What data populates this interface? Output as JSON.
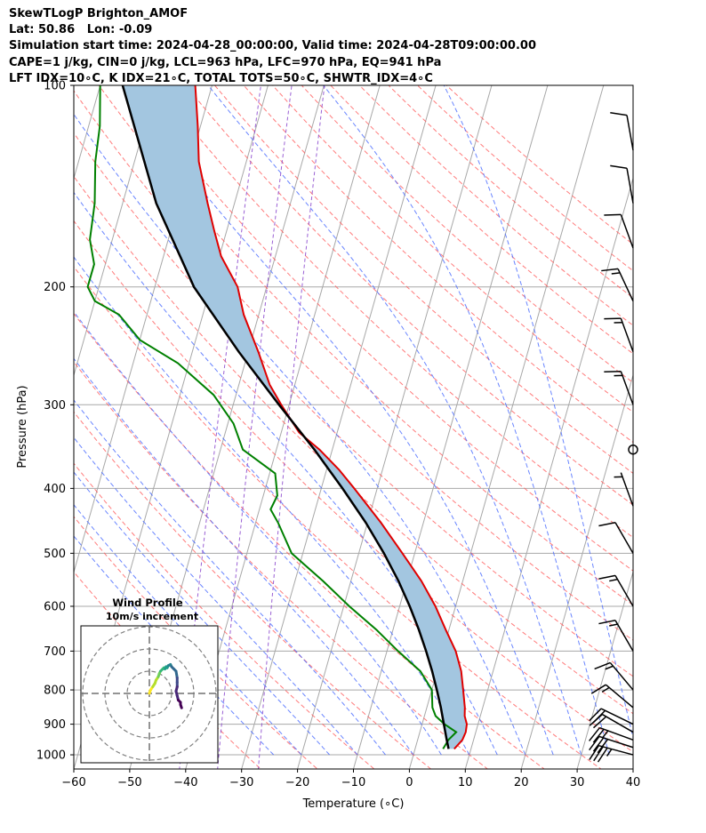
{
  "header": {
    "line1": "SkewTLogP Brighton_AMOF",
    "line2": "Lat: 50.86   Lon: -0.09",
    "line3": "Simulation start time: 2024-04-28_00:00:00, Valid time: 2024-04-28T09:00:00.00",
    "line4": "CAPE=1 j/kg, CIN=0 j/kg, LCL=963 hPa, LFC=970 hPa, EQ=941 hPa",
    "line5": "LFT IDX=10∘C, K IDX=21∘C, TOTAL TOTS=50∘C, SHWTR_IDX=4∘C"
  },
  "chart_data": [
    {
      "type": "line",
      "subtype": "skew-t log-p",
      "xlabel": "Temperature (∘C)",
      "ylabel": "Pressure (hPa)",
      "xlim": [
        -60,
        40
      ],
      "ylim": [
        1050,
        100
      ],
      "y_scale": "log",
      "x_ticks": [
        -60,
        -50,
        -40,
        -30,
        -20,
        -10,
        0,
        10,
        20,
        30,
        40
      ],
      "x_tick_labels": [
        "−60",
        "−50",
        "−40",
        "−30",
        "−20",
        "−10",
        "0",
        "10",
        "20",
        "30",
        "40"
      ],
      "y_ticks": [
        1000,
        900,
        800,
        700,
        600,
        500,
        400,
        300,
        200,
        100
      ],
      "y_tick_labels": [
        "1000",
        "900",
        "800",
        "700",
        "600",
        "500",
        "400",
        "300",
        "200",
        "100"
      ],
      "grid": true,
      "skew_deg_per_decade": 34,
      "colors": {
        "temperature": "#e00000",
        "dewpoint": "#008000",
        "parcel": "#000000",
        "cape_fill": "#a3c6e0",
        "dry_adiabat": "#ff5a5a",
        "moist_adiabat": "#4466ff",
        "mixing_ratio": "#8844cc",
        "isotherm_grid": "#a8a8a8",
        "wind_barb": "#000000"
      },
      "series": [
        {
          "pressure": [
            980,
            950,
            925,
            900,
            875,
            850,
            800,
            750,
            700,
            650,
            600,
            550,
            500,
            450,
            400,
            375,
            350,
            330,
            300,
            280,
            250,
            220,
            200,
            180,
            165,
            150,
            130,
            115,
            100
          ],
          "values": [
            7.0,
            8.0,
            8.2,
            8.0,
            7.2,
            6.8,
            5.6,
            4.3,
            2.3,
            -0.6,
            -3.6,
            -7.4,
            -12.2,
            -17.6,
            -24.1,
            -27.8,
            -32.3,
            -36.8,
            -41.4,
            -44.5,
            -48.2,
            -52.7,
            -55.2,
            -59.7,
            -62.2,
            -64.8,
            -68.5,
            -70.5,
            -73.0
          ]
        },
        {
          "pressure": [
            980,
            950,
            925,
            900,
            875,
            850,
            800,
            750,
            700,
            650,
            600,
            550,
            500,
            450,
            430,
            410,
            380,
            350,
            320,
            290,
            260,
            240,
            220,
            210,
            200,
            185,
            170,
            150,
            130,
            115,
            100
          ],
          "values": [
            5.0,
            5.5,
            6.5,
            4.0,
            2.0,
            1.0,
            0.0,
            -3.0,
            -8.0,
            -13.0,
            -19.0,
            -25.0,
            -32.0,
            -36.0,
            -38.0,
            -37.5,
            -39.0,
            -46.0,
            -49.0,
            -54.0,
            -62.0,
            -70.0,
            -75.0,
            -80.0,
            -82.0,
            -82.0,
            -84.0,
            -85.0,
            -87.0,
            -88.0,
            -90.0
          ]
        },
        {
          "pressure": [
            980,
            950,
            900,
            850,
            800,
            750,
            700,
            650,
            600,
            550,
            500,
            450,
            400,
            350,
            300,
            250,
            200,
            150,
            100
          ],
          "values": [
            6.0,
            5.2,
            3.9,
            2.5,
            0.9,
            -0.9,
            -3.0,
            -5.4,
            -8.2,
            -11.5,
            -15.5,
            -20.3,
            -26.2,
            -33.2,
            -41.8,
            -51.7,
            -63.0,
            -74.0,
            -86.0
          ]
        }
      ],
      "wind_barbs": [
        {
          "pressure": 1000,
          "speed_kt": 35,
          "dir_deg": 285
        },
        {
          "pressure": 975,
          "speed_kt": 30,
          "dir_deg": 288
        },
        {
          "pressure": 950,
          "speed_kt": 25,
          "dir_deg": 290
        },
        {
          "pressure": 925,
          "speed_kt": 20,
          "dir_deg": 300
        },
        {
          "pressure": 900,
          "speed_kt": 20,
          "dir_deg": 296
        },
        {
          "pressure": 850,
          "speed_kt": 15,
          "dir_deg": 310
        },
        {
          "pressure": 800,
          "speed_kt": 15,
          "dir_deg": 320
        },
        {
          "pressure": 700,
          "speed_kt": 15,
          "dir_deg": 330
        },
        {
          "pressure": 600,
          "speed_kt": 15,
          "dir_deg": 330
        },
        {
          "pressure": 500,
          "speed_kt": 10,
          "dir_deg": 330
        },
        {
          "pressure": 425,
          "speed_kt": 5,
          "dir_deg": 340
        },
        {
          "pressure": 350,
          "speed_kt": 0,
          "dir_deg": 0
        },
        {
          "pressure": 300,
          "speed_kt": 15,
          "dir_deg": 340
        },
        {
          "pressure": 250,
          "speed_kt": 15,
          "dir_deg": 340
        },
        {
          "pressure": 210,
          "speed_kt": 15,
          "dir_deg": 335
        },
        {
          "pressure": 175,
          "speed_kt": 10,
          "dir_deg": 340
        },
        {
          "pressure": 150,
          "speed_kt": 10,
          "dir_deg": 350
        },
        {
          "pressure": 125,
          "speed_kt": 10,
          "dir_deg": 350
        }
      ]
    },
    {
      "type": "scatter",
      "subtype": "hodograph",
      "title": "Wind Profile",
      "subtitle": "10m/s increment",
      "ring_increment_ms": 10,
      "rings": 3,
      "x": [
        0.0,
        0.5,
        1.5,
        2.5,
        3.0,
        4.0,
        4.5,
        5.0,
        6.0,
        6.5,
        7.0,
        7.5,
        8.0,
        8.5,
        9.5,
        10.0,
        11.0,
        12.0,
        12.5,
        12.5,
        12.5,
        12.0,
        12.5,
        13.0,
        14.0,
        14.0,
        14.5
      ],
      "y": [
        0.0,
        1.5,
        3.0,
        4.5,
        6.0,
        7.5,
        9.0,
        10.0,
        11.0,
        11.5,
        11.0,
        12.0,
        11.5,
        12.5,
        13.0,
        12.0,
        11.0,
        10.0,
        7.0,
        5.0,
        3.0,
        1.0,
        -1.0,
        -3.0,
        -4.0,
        -5.0,
        -6.5
      ]
    }
  ]
}
